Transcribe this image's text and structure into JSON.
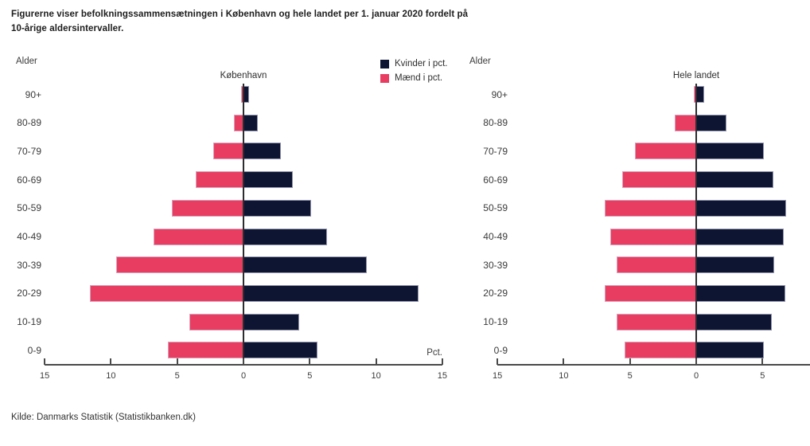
{
  "page": {
    "title_line1": "Figurerne viser befolkningssammensætningen i København og hele landet per 1. januar 2020 fordelt på",
    "title_line2": "10-årige aldersintervaller.",
    "source": "Kilde: Danmarks Statistik (Statistikbanken.dk)"
  },
  "legend": {
    "women_label": "Kvinder i pct.",
    "men_label": "Mænd i pct."
  },
  "colors": {
    "women": "#0e1532",
    "men": "#e83c61",
    "axis": "#4a4a4a",
    "zero_line": "#2d2d31"
  },
  "chart_data": [
    {
      "type": "bar",
      "subtype": "population-pyramid",
      "title": "København",
      "y_axis_label": "Alder",
      "x_axis_label": "Pct.",
      "categories": [
        "90+",
        "80-89",
        "70-79",
        "60-69",
        "50-59",
        "40-49",
        "30-39",
        "20-29",
        "10-19",
        "0-9"
      ],
      "series": [
        {
          "name": "Kvinder i pct.",
          "side": "right",
          "color": "#0e1532",
          "values": [
            0.4,
            1.1,
            2.8,
            3.7,
            5.1,
            6.3,
            9.3,
            13.2,
            4.2,
            5.6
          ]
        },
        {
          "name": "Mænd i pct.",
          "side": "left",
          "color": "#e83c61",
          "values": [
            0.2,
            0.7,
            2.3,
            3.6,
            5.4,
            6.8,
            9.6,
            11.6,
            4.1,
            5.7
          ]
        }
      ],
      "xlim": [
        -15,
        15
      ],
      "xtick_labels": [
        "15",
        "10",
        "5",
        "0",
        "5",
        "10",
        "15"
      ],
      "grid": false,
      "legend_position": "top-right"
    },
    {
      "type": "bar",
      "subtype": "population-pyramid",
      "title": "Hele landet",
      "y_axis_label": "Alder",
      "x_axis_label": "",
      "categories": [
        "90+",
        "80-89",
        "70-79",
        "60-69",
        "50-59",
        "40-49",
        "30-39",
        "20-29",
        "10-19",
        "0-9"
      ],
      "series": [
        {
          "name": "Kvinder i pct.",
          "side": "right",
          "color": "#0e1532",
          "values": [
            0.6,
            2.3,
            5.1,
            5.8,
            6.8,
            6.6,
            5.9,
            6.7,
            5.7,
            5.1
          ]
        },
        {
          "name": "Mænd i pct.",
          "side": "left",
          "color": "#e83c61",
          "values": [
            0.2,
            1.6,
            4.6,
            5.6,
            6.9,
            6.5,
            6.0,
            6.9,
            6.0,
            5.4
          ]
        }
      ],
      "xlim": [
        -15,
        15
      ],
      "xtick_labels": [
        "15",
        "10",
        "5",
        "0",
        "5"
      ],
      "note": "right side of axis clipped at image edge",
      "grid": false
    }
  ]
}
